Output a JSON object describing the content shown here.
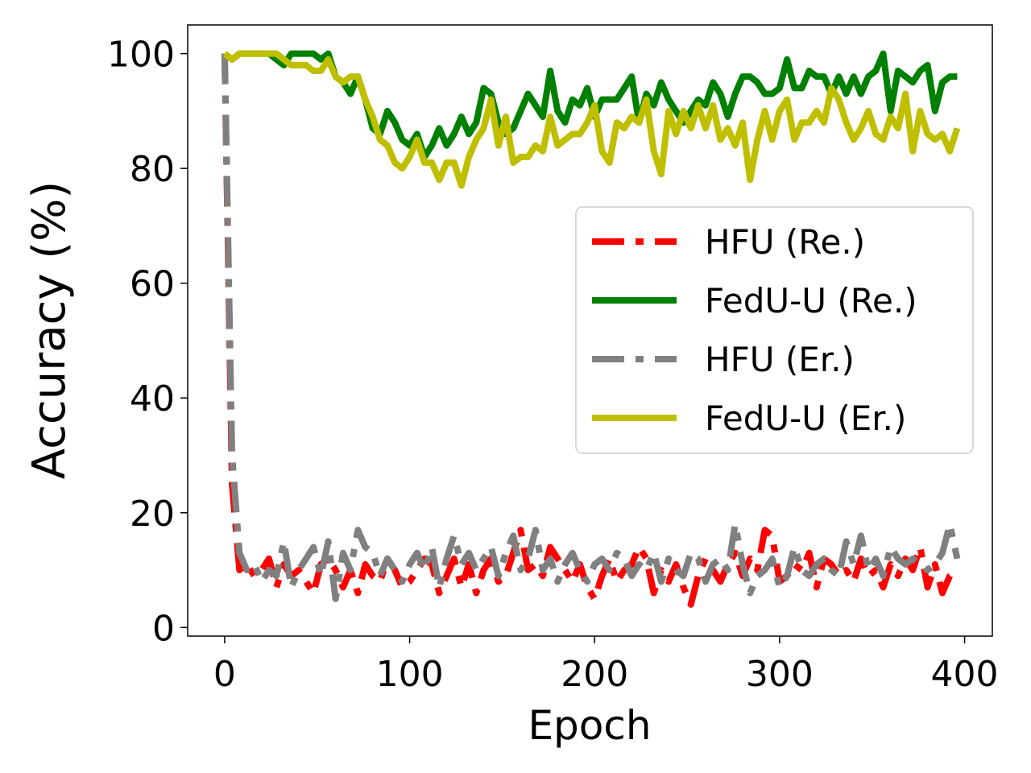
{
  "chart_data": {
    "type": "line",
    "title": "",
    "xlabel": "Epoch",
    "ylabel": "Accuracy (%)",
    "xlim": [
      -20,
      415
    ],
    "ylim": [
      -1.5,
      105
    ],
    "x_ticks": [
      0,
      100,
      200,
      300,
      400
    ],
    "y_ticks": [
      0,
      20,
      40,
      60,
      80,
      100
    ],
    "grid": false,
    "legend_position": "center-right",
    "x": [
      0,
      4,
      8,
      12,
      16,
      20,
      24,
      28,
      32,
      36,
      40,
      44,
      48,
      52,
      56,
      60,
      64,
      68,
      72,
      76,
      80,
      84,
      88,
      92,
      96,
      100,
      104,
      108,
      112,
      116,
      120,
      124,
      128,
      132,
      136,
      140,
      144,
      148,
      152,
      156,
      160,
      164,
      168,
      172,
      176,
      180,
      184,
      188,
      192,
      196,
      200,
      204,
      208,
      212,
      216,
      220,
      224,
      228,
      232,
      236,
      240,
      244,
      248,
      252,
      256,
      260,
      264,
      268,
      272,
      276,
      280,
      284,
      288,
      292,
      296,
      300,
      304,
      308,
      312,
      316,
      320,
      324,
      328,
      332,
      336,
      340,
      344,
      348,
      352,
      356,
      360,
      364,
      368,
      372,
      376,
      380,
      384,
      388,
      392,
      396
    ],
    "series": [
      {
        "name": "HFU (Re.)",
        "color": "#ff0000",
        "style": "dashdot",
        "values": [
          100,
          25,
          10,
          11,
          9,
          10,
          12,
          7,
          11,
          9,
          10,
          8,
          6,
          11,
          12,
          10,
          7,
          10,
          6,
          11,
          9,
          8,
          12,
          10,
          7,
          8,
          10,
          12,
          11,
          6,
          9,
          12,
          7,
          11,
          6,
          10,
          12,
          8,
          9,
          13,
          17,
          10,
          11,
          9,
          14,
          12,
          10,
          8,
          11,
          7,
          5,
          9,
          12,
          8,
          10,
          11,
          14,
          12,
          6,
          10,
          8,
          11,
          7,
          4,
          9,
          12,
          10,
          8,
          11,
          13,
          9,
          12,
          10,
          17,
          16,
          8,
          9,
          11,
          10,
          13,
          7,
          12,
          11,
          9,
          10,
          8,
          12,
          9,
          10,
          7,
          11,
          9,
          12,
          10,
          14,
          7,
          11,
          6,
          9,
          10
        ]
      },
      {
        "name": "FedU-U (Re.)",
        "color": "#008000",
        "style": "solid",
        "values": [
          100,
          99,
          100,
          100,
          100,
          100,
          100,
          99,
          98,
          100,
          100,
          100,
          100,
          99,
          100,
          96,
          95,
          93,
          96,
          92,
          87,
          86,
          90,
          88,
          85,
          84,
          86,
          82,
          84,
          87,
          84,
          86,
          89,
          86,
          88,
          94,
          93,
          88,
          86,
          87,
          90,
          93,
          91,
          89,
          97,
          90,
          88,
          92,
          91,
          94,
          89,
          92,
          92,
          92,
          94,
          96,
          88,
          93,
          91,
          95,
          92,
          90,
          88,
          90,
          92,
          91,
          95,
          93,
          89,
          93,
          96,
          96,
          95,
          93,
          93,
          94,
          99,
          94,
          94,
          97,
          96,
          96,
          93,
          96,
          93,
          96,
          93,
          96,
          97,
          100,
          90,
          97,
          96,
          95,
          97,
          98,
          90,
          95,
          96,
          96
        ]
      },
      {
        "name": "HFU (Er.)",
        "color": "#808080",
        "style": "dashdot",
        "values": [
          100,
          30,
          13,
          10,
          11,
          8,
          10,
          9,
          15,
          7,
          10,
          12,
          14,
          9,
          15,
          5,
          13,
          10,
          17,
          14,
          13,
          9,
          12,
          10,
          8,
          11,
          13,
          10,
          14,
          7,
          12,
          16,
          11,
          13,
          10,
          12,
          14,
          9,
          13,
          16,
          10,
          12,
          17,
          10,
          12,
          8,
          11,
          13,
          10,
          8,
          11,
          12,
          10,
          13,
          12,
          9,
          11,
          10,
          13,
          8,
          12,
          10,
          9,
          13,
          12,
          8,
          11,
          12,
          10,
          18,
          11,
          6,
          9,
          10,
          12,
          7,
          9,
          14,
          10,
          9,
          11,
          12,
          10,
          9,
          15,
          11,
          16,
          10,
          12,
          9,
          14,
          12,
          11,
          12,
          11,
          10,
          11,
          13,
          18,
          12
        ]
      },
      {
        "name": "FedU-U (Er.)",
        "color": "#bfbf00",
        "style": "solid",
        "values": [
          100,
          99,
          100,
          100,
          100,
          100,
          100,
          100,
          99,
          98,
          98,
          98,
          97,
          97,
          99,
          96,
          95,
          96,
          96,
          92,
          89,
          85,
          84,
          81,
          80,
          82,
          85,
          81,
          81,
          78,
          81,
          81,
          77,
          82,
          85,
          87,
          92,
          84,
          89,
          81,
          82,
          82,
          84,
          83,
          89,
          84,
          85,
          86,
          86,
          88,
          91,
          83,
          81,
          88,
          87,
          89,
          88,
          92,
          83,
          79,
          90,
          86,
          90,
          87,
          91,
          87,
          91,
          85,
          87,
          84,
          88,
          78,
          85,
          90,
          85,
          90,
          92,
          85,
          88,
          88,
          90,
          88,
          94,
          92,
          88,
          85,
          87,
          90,
          86,
          85,
          89,
          87,
          93,
          83,
          90,
          86,
          85,
          86,
          83,
          87
        ]
      }
    ]
  }
}
